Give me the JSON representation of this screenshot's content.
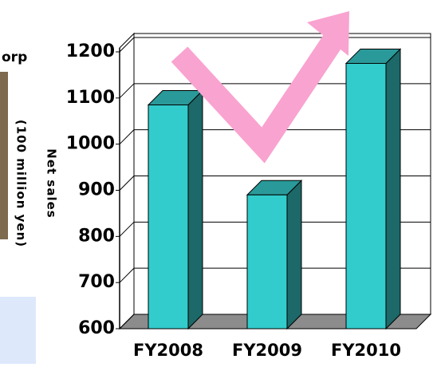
{
  "side_text": "orp",
  "chart_data": {
    "type": "bar3d",
    "ylabel": [
      "Net sales",
      "(100 million yen)"
    ],
    "categories": [
      "FY2008",
      "FY2009",
      "FY2010"
    ],
    "values": [
      1085,
      890,
      1175
    ],
    "color": "#33cccc",
    "ylim": [
      600,
      1200
    ],
    "yticks": [
      600,
      700,
      800,
      900,
      1000,
      1100,
      1200
    ],
    "grid": true
  }
}
